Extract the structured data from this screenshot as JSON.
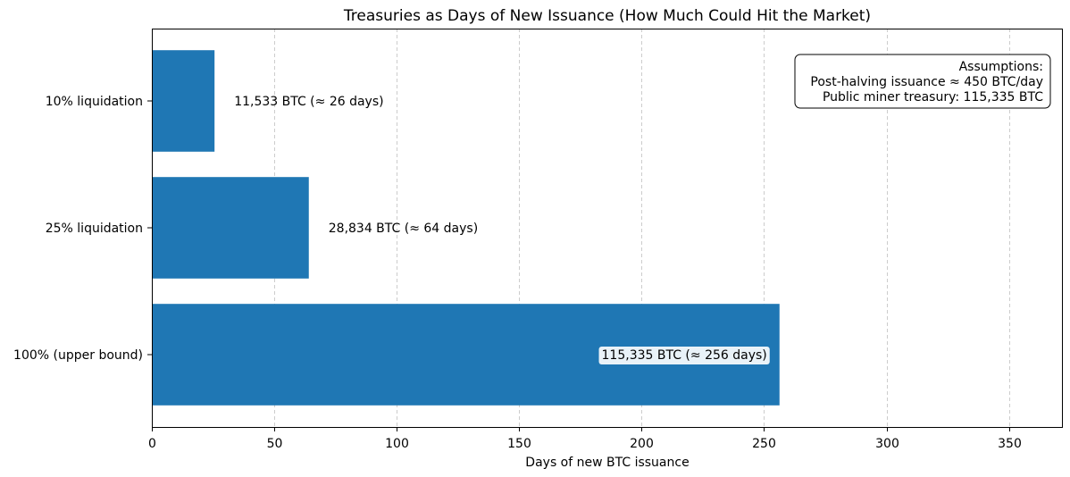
{
  "chart_data": {
    "type": "bar",
    "orientation": "horizontal",
    "title": "Treasuries as Days of New Issuance (How Much Could Hit the Market)",
    "xlabel": "Days of new BTC issuance",
    "ylabel": "",
    "xlim": [
      0,
      372
    ],
    "xticks": [
      0,
      50,
      100,
      150,
      200,
      250,
      300,
      350
    ],
    "grid": "x-dashed",
    "bar_color": "#1f77b4",
    "categories": [
      "10% liquidation",
      "25% liquidation",
      "100% (upper bound)"
    ],
    "values": [
      25.6,
      64.1,
      256.3
    ],
    "data_labels": [
      "11,533 BTC  (≈ 26 days)",
      "28,834 BTC  (≈ 64 days)",
      "115,335 BTC  (≈ 256 days)"
    ],
    "annotation": {
      "placement": "top-right",
      "lines": [
        "Assumptions:",
        "Post-halving issuance ≈ 450 BTC/day",
        "Public miner treasury: 115,335 BTC"
      ]
    }
  }
}
